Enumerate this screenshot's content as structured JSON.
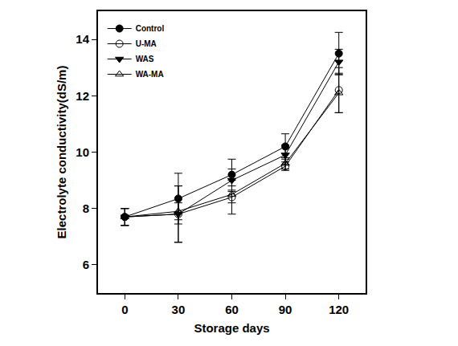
{
  "chart_data": {
    "type": "line",
    "x_label": "Storage days",
    "y_label": "Electrolyte conductivity(dS/m)",
    "x": [
      0,
      30,
      60,
      90,
      120
    ],
    "xlim": [
      -15,
      135
    ],
    "xticks": [
      0,
      30,
      60,
      90,
      120
    ],
    "ylim": [
      5,
      15
    ],
    "yticks": [
      6,
      8,
      10,
      12,
      14
    ],
    "grid": false,
    "legend": "upper left",
    "series": [
      {
        "name": "Control",
        "color": "#000000",
        "marker": "circle",
        "values": [
          7.7,
          8.35,
          9.2,
          10.2,
          13.5
        ],
        "error": [
          0.3,
          0.9,
          0.55,
          0.45,
          0.75
        ]
      },
      {
        "name": "U-MA",
        "color": "#000000",
        "marker": "circle-open",
        "values": [
          7.7,
          7.8,
          8.4,
          9.5,
          12.2
        ],
        "error": [
          0.3,
          1.0,
          0.6,
          0.15,
          0.8
        ]
      },
      {
        "name": "WAS",
        "color": "#000000",
        "marker": "triangle-down",
        "values": [
          7.7,
          7.8,
          9.0,
          9.9,
          13.2
        ],
        "error": [
          0.3,
          1.0,
          0.4,
          0.35,
          0.45
        ]
      },
      {
        "name": "WA-MA",
        "color": "#000000",
        "marker": "triangle-up-open",
        "values": [
          7.7,
          7.9,
          8.5,
          9.6,
          12.1
        ],
        "error": [
          0.3,
          0.3,
          0.3,
          0.2,
          0.7
        ]
      }
    ]
  }
}
